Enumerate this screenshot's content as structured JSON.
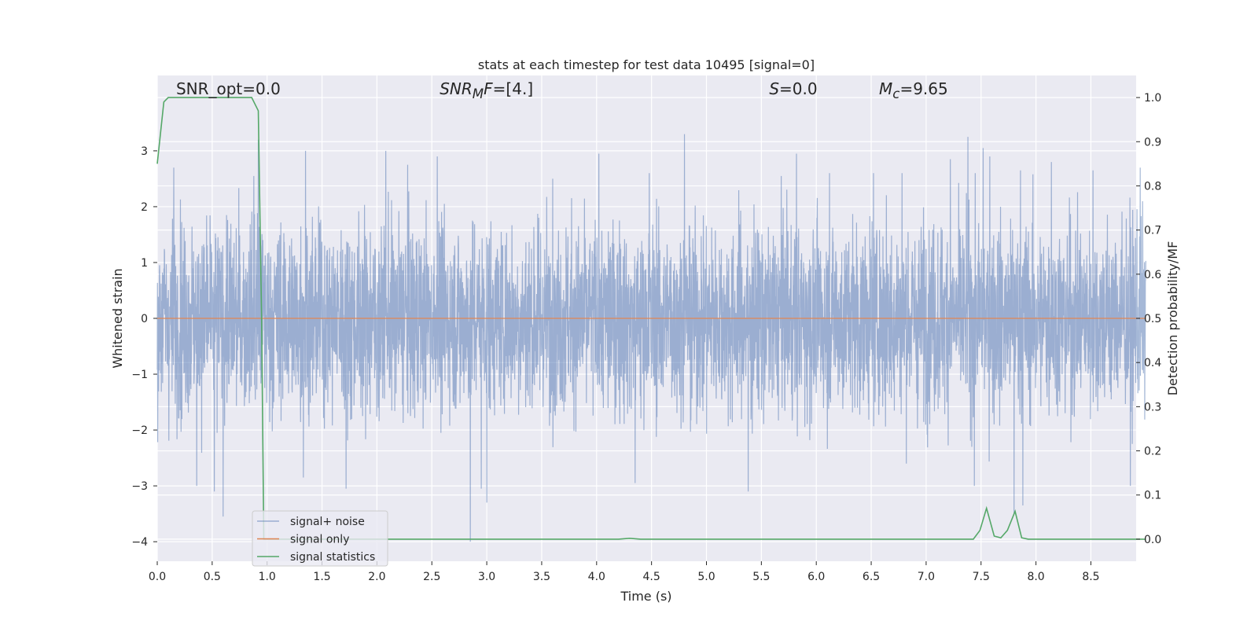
{
  "chart_data": {
    "type": "line",
    "title": "stats at each timestep for test data 10495 [signal=0]",
    "xlabel": "Time (s)",
    "ylabel": "Whitened strain",
    "y2label": "Detection probability/MF",
    "xlim": [
      0.0,
      9.0
    ],
    "ylim": [
      -4.35,
      4.35
    ],
    "y2lim": [
      -0.05,
      1.05
    ],
    "xticks": [
      "0.0",
      "0.5",
      "1.0",
      "1.5",
      "2.0",
      "2.5",
      "3.0",
      "3.5",
      "4.0",
      "4.5",
      "5.0",
      "5.5",
      "6.0",
      "6.5",
      "7.0",
      "7.5",
      "8.0",
      "8.5"
    ],
    "yticks": [
      "−4",
      "−3",
      "−2",
      "−1",
      "0",
      "1",
      "2",
      "3"
    ],
    "y2ticks": [
      "0.0",
      "0.1",
      "0.2",
      "0.3",
      "0.4",
      "0.5",
      "0.6",
      "0.7",
      "0.8",
      "0.9",
      "1.0"
    ],
    "grid": true,
    "legend_position": "lower-left",
    "annotations": [
      {
        "id": "snr-opt",
        "html": "SNR_opt=0.0",
        "x": 0.2
      },
      {
        "id": "snr-mf",
        "html": "<i>SNR</i><sub><i>M</i></sub><i>F</i>=[4.]",
        "x": 2.6
      },
      {
        "id": "s-stat",
        "html": "<i>S</i>=0.0",
        "x": 5.6
      },
      {
        "id": "mc",
        "html": "<i>M</i><sub><i>c</i></sub>=9.65",
        "x": 6.6
      }
    ],
    "series": [
      {
        "name": "signal+ noise",
        "axis": "left",
        "color": "#4c72b0",
        "opacity": 0.5,
        "kind": "noise",
        "sample_rate": 2048,
        "x_range": [
          0.0,
          9.0
        ],
        "envelope_typical": [
          -1.3,
          1.3
        ],
        "peaks": [
          {
            "x": 0.15,
            "y": 2.7
          },
          {
            "x": 0.36,
            "y": -3.0
          },
          {
            "x": 0.52,
            "y": -3.1
          },
          {
            "x": 0.6,
            "y": -3.55
          },
          {
            "x": 0.88,
            "y": 2.55
          },
          {
            "x": 0.92,
            "y": 3.2
          },
          {
            "x": 1.33,
            "y": -2.85
          },
          {
            "x": 1.35,
            "y": 3.0
          },
          {
            "x": 1.72,
            "y": -3.05
          },
          {
            "x": 2.08,
            "y": 3.0
          },
          {
            "x": 2.28,
            "y": 2.75
          },
          {
            "x": 2.55,
            "y": 2.9
          },
          {
            "x": 2.85,
            "y": -4.0
          },
          {
            "x": 2.95,
            "y": -3.05
          },
          {
            "x": 3.0,
            "y": -3.3
          },
          {
            "x": 3.6,
            "y": 2.5
          },
          {
            "x": 4.02,
            "y": 2.95
          },
          {
            "x": 4.35,
            "y": -2.95
          },
          {
            "x": 4.48,
            "y": 2.6
          },
          {
            "x": 4.8,
            "y": 3.3
          },
          {
            "x": 5.38,
            "y": -3.1
          },
          {
            "x": 5.68,
            "y": 2.55
          },
          {
            "x": 5.82,
            "y": 2.95
          },
          {
            "x": 6.12,
            "y": 2.6
          },
          {
            "x": 6.52,
            "y": 2.6
          },
          {
            "x": 6.78,
            "y": 2.6
          },
          {
            "x": 7.22,
            "y": 2.85
          },
          {
            "x": 7.38,
            "y": 3.25
          },
          {
            "x": 7.44,
            "y": -3.0
          },
          {
            "x": 7.52,
            "y": 3.05
          },
          {
            "x": 7.58,
            "y": 2.9
          },
          {
            "x": 7.8,
            "y": -3.5
          },
          {
            "x": 7.86,
            "y": 2.65
          },
          {
            "x": 7.88,
            "y": -3.35
          },
          {
            "x": 8.14,
            "y": 2.8
          },
          {
            "x": 8.52,
            "y": 2.65
          },
          {
            "x": 8.86,
            "y": -3.0
          },
          {
            "x": 8.95,
            "y": 2.7
          }
        ]
      },
      {
        "name": "signal only",
        "axis": "left",
        "color": "#dd8452",
        "x": [
          0.0,
          9.0
        ],
        "y": [
          0.0,
          0.0
        ]
      },
      {
        "name": "signal statistics",
        "axis": "right",
        "color": "#55a868",
        "x": [
          0.0,
          0.06,
          0.1,
          0.2,
          0.3,
          0.4,
          0.5,
          0.6,
          0.7,
          0.8,
          0.86,
          0.92,
          0.95,
          0.97,
          1.0,
          1.2,
          1.5,
          2.0,
          2.5,
          3.0,
          3.5,
          4.0,
          4.2,
          4.3,
          4.4,
          5.0,
          5.5,
          6.0,
          6.5,
          7.0,
          7.3,
          7.43,
          7.49,
          7.55,
          7.62,
          7.68,
          7.74,
          7.81,
          7.87,
          7.93,
          8.0,
          8.5,
          9.0
        ],
        "y": [
          0.85,
          0.99,
          1.0,
          1.0,
          1.0,
          1.0,
          1.0,
          1.0,
          1.0,
          1.0,
          1.0,
          0.97,
          0.5,
          0.0,
          0.0,
          0.0,
          0.0,
          0.0,
          0.0,
          0.0,
          0.0,
          0.0,
          0.0,
          0.002,
          0.0,
          0.0,
          0.0,
          0.0,
          0.0,
          0.0,
          0.0,
          0.0,
          0.02,
          0.07,
          0.007,
          0.003,
          0.02,
          0.063,
          0.003,
          0.0,
          0.0,
          0.0,
          0.0
        ]
      }
    ]
  }
}
